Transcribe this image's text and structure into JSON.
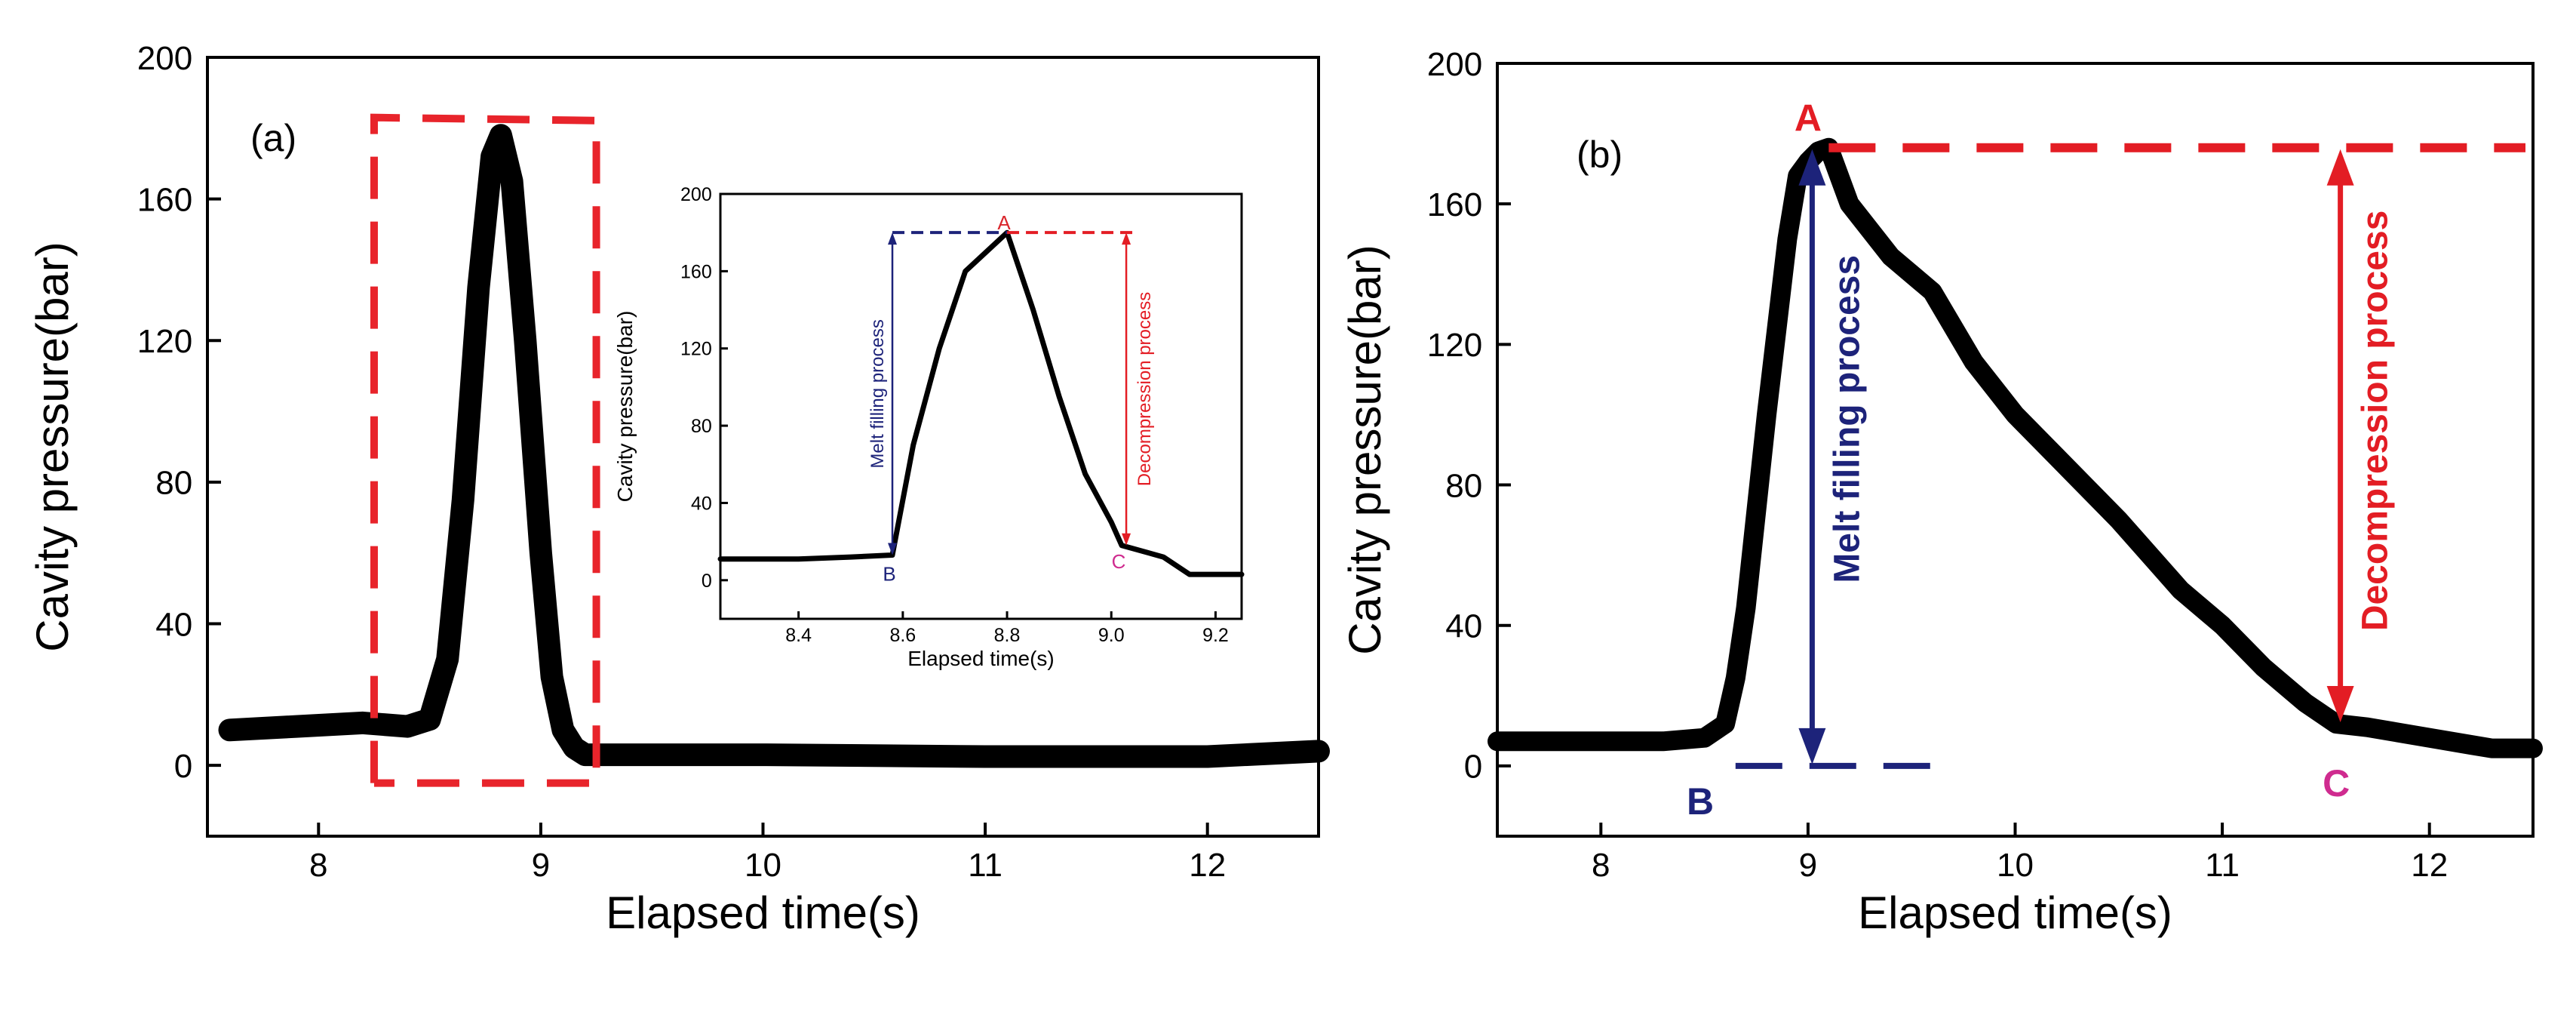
{
  "chart_data": [
    {
      "id": "panel_a",
      "type": "line",
      "panel_label": "(a)",
      "xlabel": "Elapsed time(s)",
      "ylabel": "Cavity pressure(bar)",
      "xlim": [
        7.5,
        12.5
      ],
      "ylim": [
        -20,
        200
      ],
      "xticks": [
        8,
        9,
        10,
        11,
        12
      ],
      "yticks": [
        0,
        40,
        80,
        120,
        160,
        200
      ],
      "series": [
        {
          "name": "cavity pressure",
          "color": "#000000",
          "x": [
            7.6,
            7.9,
            8.2,
            8.4,
            8.5,
            8.58,
            8.65,
            8.72,
            8.78,
            8.82,
            8.87,
            8.93,
            9.0,
            9.05,
            9.1,
            9.15,
            9.2,
            9.3,
            10.0,
            11.0,
            12.0,
            12.5
          ],
          "y": [
            10,
            11,
            12,
            11,
            13,
            30,
            75,
            135,
            172,
            178,
            165,
            120,
            60,
            25,
            10,
            5,
            3,
            3,
            3,
            2.5,
            2.5,
            4
          ]
        }
      ],
      "highlight_box": {
        "x_range": [
          8.25,
          9.25
        ],
        "y_range": [
          -5,
          183
        ],
        "color": "#e8242b"
      },
      "inset": {
        "xlabel": "Elapsed time(s)",
        "ylabel": "Cavity pressure(bar)",
        "xlim": [
          8.25,
          9.25
        ],
        "ylim": [
          -20,
          200
        ],
        "xticks": [
          8.4,
          8.6,
          8.8,
          9.0,
          9.2
        ],
        "xtick_labels": [
          "8.4",
          "8.6",
          "8.8",
          "9.0",
          "9.2"
        ],
        "yticks": [
          0,
          40,
          80,
          120,
          160,
          200
        ],
        "series": [
          {
            "name": "cavity pressure",
            "color": "#000000",
            "x": [
              8.25,
              8.4,
              8.5,
              8.58,
              8.62,
              8.67,
              8.72,
              8.8,
              8.85,
              8.9,
              8.95,
              9.0,
              9.02,
              9.1,
              9.15,
              9.25
            ],
            "y": [
              11,
              11,
              12,
              13,
              70,
              120,
              160,
              180,
              140,
              95,
              55,
              30,
              18,
              12,
              3,
              3
            ]
          }
        ],
        "points": [
          {
            "label": "A",
            "x": 8.8,
            "y": 180,
            "color": "#d9262c"
          },
          {
            "label": "B",
            "x": 8.58,
            "y": 13,
            "color": "#1d237a"
          },
          {
            "label": "C",
            "x": 9.02,
            "y": 18,
            "color": "#cf2b8f"
          }
        ],
        "melt_label": "Melt filling process",
        "decompression_label": "Decompression process"
      }
    },
    {
      "id": "panel_b",
      "type": "line",
      "panel_label": "(b)",
      "xlabel": "Elapsed time(s)",
      "ylabel": "Cavity pressure(bar)",
      "xlim": [
        7.5,
        12.5
      ],
      "ylim": [
        -20,
        200
      ],
      "xticks": [
        8,
        9,
        10,
        11,
        12
      ],
      "yticks": [
        0,
        40,
        80,
        120,
        160,
        200
      ],
      "series": [
        {
          "name": "cavity pressure",
          "color": "#000000",
          "x": [
            7.5,
            8.0,
            8.3,
            8.5,
            8.6,
            8.65,
            8.7,
            8.8,
            8.9,
            8.95,
            9.0,
            9.05,
            9.1,
            9.2,
            9.4,
            9.6,
            9.8,
            10.0,
            10.2,
            10.5,
            10.8,
            11.0,
            11.2,
            11.4,
            11.55,
            11.7,
            12.0,
            12.2,
            12.3,
            12.5
          ],
          "y": [
            7,
            7,
            7,
            8,
            12,
            25,
            45,
            100,
            150,
            168,
            172,
            175,
            176,
            160,
            145,
            135,
            115,
            100,
            88,
            70,
            50,
            40,
            28,
            18,
            12,
            11,
            8,
            6,
            5,
            5
          ]
        }
      ],
      "points": [
        {
          "label": "A",
          "x": 9.05,
          "y": 176,
          "color": "#e31d24"
        },
        {
          "label": "B",
          "x": 8.55,
          "y": 0,
          "color": "#1d237a"
        },
        {
          "label": "C",
          "x": 11.55,
          "y": 12,
          "color": "#cf2b8f"
        }
      ],
      "melt_label": "Melt filling process",
      "decompression_label": "Decompression process"
    }
  ]
}
